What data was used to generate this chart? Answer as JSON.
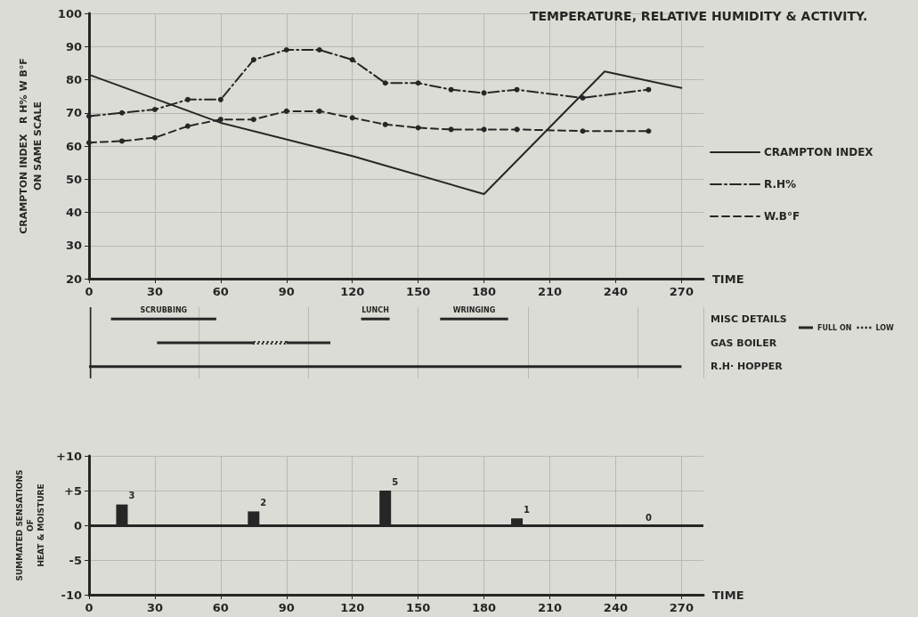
{
  "chart_data": [
    {
      "type": "line",
      "title": "TEMPERATURE, RELATIVE HUMIDITY & ACTIVITY.",
      "ylabel": "CRAMPTON INDEX   R H% W B°F\nON SAME SCALE",
      "xlabel": "TIME",
      "xlim": [
        0,
        280
      ],
      "xticks": [
        0,
        30,
        60,
        90,
        120,
        150,
        180,
        210,
        240,
        270
      ],
      "ylim": [
        20,
        100
      ],
      "yticks": [
        20,
        30,
        40,
        50,
        60,
        70,
        80,
        90,
        100
      ],
      "grid": true,
      "legend": "right",
      "series": [
        {
          "name": "CRAMPTON INDEX",
          "color": "#262626",
          "line_style": "solid",
          "marker": "none",
          "x": [
            0,
            60,
            120,
            180,
            235,
            270
          ],
          "values": [
            81.5,
            67,
            57,
            45.5,
            82.5,
            77.5
          ]
        },
        {
          "name": "R.H%",
          "color": "#262626",
          "line_style": "dashdot",
          "marker": "circle",
          "x": [
            0,
            15,
            30,
            45,
            60,
            75,
            90,
            105,
            120,
            135,
            150,
            165,
            180,
            195,
            225,
            255
          ],
          "values": [
            69,
            70,
            71,
            74,
            74,
            86,
            89,
            89,
            86,
            79,
            79,
            77,
            76,
            77,
            74.5,
            77
          ]
        },
        {
          "name": "W.B°F",
          "color": "#262626",
          "line_style": "dashed",
          "marker": "circle",
          "x": [
            0,
            15,
            30,
            45,
            60,
            75,
            90,
            105,
            120,
            135,
            150,
            165,
            180,
            195,
            225,
            255
          ],
          "values": [
            61,
            61.5,
            62.5,
            66,
            68,
            68,
            70.5,
            70.5,
            68.5,
            66.5,
            65.5,
            65,
            65,
            65,
            64.5,
            64.5
          ]
        }
      ]
    },
    {
      "type": "bar",
      "orientation": "horizontal",
      "categories": [
        "MISC DETAILS",
        "GAS BOILER",
        "R.H· HOPPER"
      ],
      "xlim": [
        0,
        280
      ],
      "tick_labels": "y",
      "grid": true,
      "legend": "right",
      "annotations": [
        "SCRUBBING",
        "LUNCH",
        "WRINGING"
      ],
      "series": [
        {
          "color": "#262626",
          "base": [
            10,
            null,
            0
          ],
          "values": [
            48,
            null,
            270
          ]
        },
        {
          "color": "#262626",
          "base": [
            124,
            null,
            null
          ],
          "values": [
            13,
            null,
            null
          ]
        },
        {
          "color": "#262626",
          "base": [
            160,
            null,
            null
          ],
          "values": [
            31,
            null,
            null
          ]
        },
        {
          "name": "FULL ON",
          "color": "#262626",
          "base": [
            null,
            31,
            null
          ],
          "values": [
            null,
            44,
            null
          ]
        },
        {
          "color": "#262626",
          "base": [
            null,
            90,
            null
          ],
          "values": [
            null,
            20,
            null
          ]
        },
        {
          "name": "LOW",
          "color": "#262626",
          "line_style": "dotted",
          "base": [
            null,
            75,
            null
          ],
          "values": [
            null,
            15,
            null
          ]
        }
      ]
    },
    {
      "type": "bar",
      "xlabel": "TIME",
      "ylabel": "SUMMATED SENSATIONS\nOF\nHEAT & MOISTURE",
      "xlim": [
        0,
        280
      ],
      "xticks": [
        0,
        30,
        60,
        90,
        120,
        150,
        180,
        210,
        240,
        270
      ],
      "ylim": [
        -10,
        10
      ],
      "yticks": [
        {
          "value": -10,
          "label": "-10"
        },
        {
          "value": -5,
          "label": "-5"
        },
        0,
        {
          "value": 5,
          "label": "+5"
        },
        {
          "value": 10,
          "label": "+10"
        }
      ],
      "grid": true,
      "data_labels": true,
      "ref_lines": [
        {
          "axis": "y",
          "value": 0
        }
      ],
      "series": [
        {
          "color": "#262626",
          "x": [
            15,
            75,
            135,
            195,
            255
          ],
          "values": [
            3,
            2,
            5,
            1,
            0
          ]
        }
      ]
    }
  ]
}
